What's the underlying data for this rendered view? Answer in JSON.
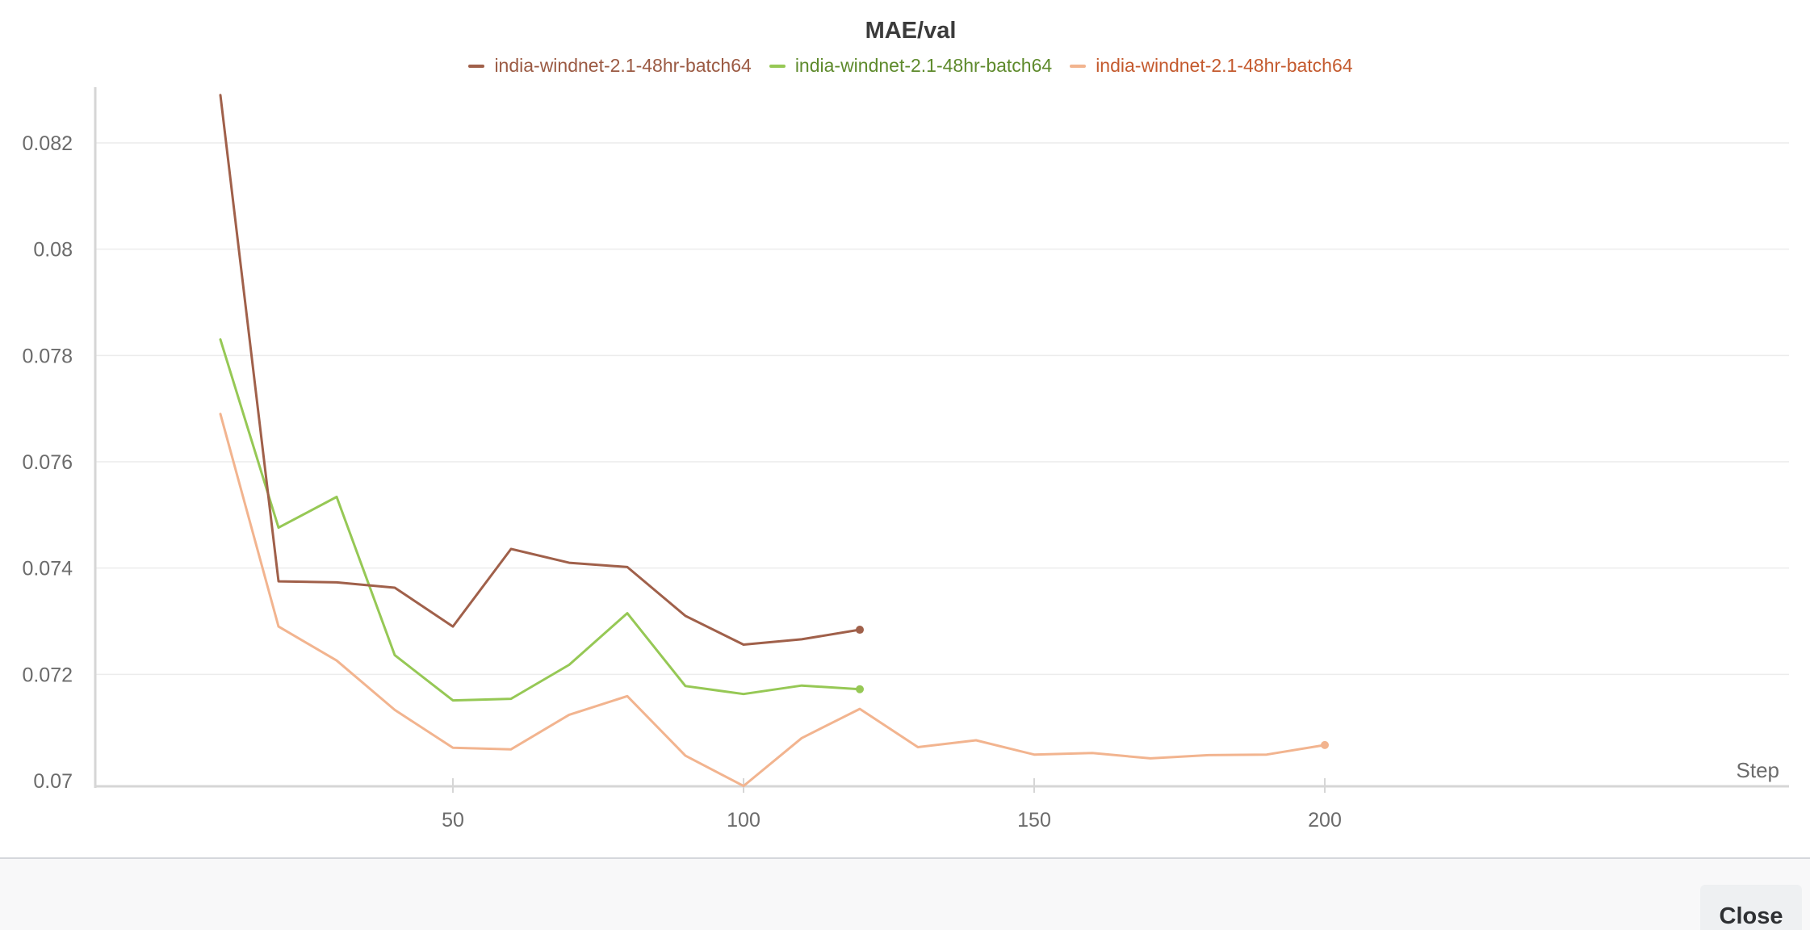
{
  "chart_data": {
    "type": "line",
    "title": "MAE/val",
    "xlabel": "Step",
    "ylabel": "",
    "xlim": [
      0,
      204
    ],
    "ylim": [
      0.07,
      0.083
    ],
    "xticks": [
      50,
      100,
      150,
      200
    ],
    "yticks": [
      0.07,
      0.072,
      0.074,
      0.076,
      0.078,
      0.08,
      0.082
    ],
    "ytick_labels": [
      "0.07",
      "0.072",
      "0.074",
      "0.076",
      "0.078",
      "0.08",
      "0.082"
    ],
    "grid": true,
    "legend_position": "top-center",
    "series": [
      {
        "name": "india-windnet-2.1-48hr-batch64",
        "color": "#a0604a",
        "legend_text_color": "#9b5a43",
        "x": [
          10,
          20,
          30,
          40,
          50,
          60,
          70,
          80,
          90,
          100,
          110,
          120
        ],
        "y": [
          0.0829,
          0.07375,
          0.07373,
          0.07363,
          0.0729,
          0.07436,
          0.0741,
          0.07402,
          0.0731,
          0.07256,
          0.07266,
          0.07284
        ]
      },
      {
        "name": "india-windnet-2.1-48hr-batch64",
        "color": "#96c855",
        "legend_text_color": "#5e8a2c",
        "x": [
          10,
          20,
          30,
          40,
          50,
          60,
          70,
          80,
          90,
          100,
          110,
          120
        ],
        "y": [
          0.0783,
          0.07476,
          0.07534,
          0.07236,
          0.07151,
          0.07154,
          0.07218,
          0.07315,
          0.07178,
          0.07163,
          0.07179,
          0.07172
        ]
      },
      {
        "name": "india-windnet-2.1-48hr-batch64",
        "color": "#f2b48f",
        "legend_text_color": "#c45a2e",
        "x": [
          10,
          20,
          30,
          40,
          50,
          60,
          70,
          80,
          90,
          100,
          110,
          120,
          130,
          140,
          150,
          160,
          170,
          180,
          190,
          200
        ],
        "y": [
          0.0769,
          0.0729,
          0.07226,
          0.07133,
          0.07062,
          0.07059,
          0.07124,
          0.07159,
          0.07047,
          0.0699,
          0.0708,
          0.07135,
          0.07063,
          0.07076,
          0.07049,
          0.07052,
          0.07042,
          0.07048,
          0.07049,
          0.07067
        ]
      }
    ]
  },
  "footer": {
    "close_label": "Close"
  },
  "colors": {
    "axis": "#d6d6d6",
    "grid": "#ececec",
    "tick_text": "#6b6b6b"
  }
}
